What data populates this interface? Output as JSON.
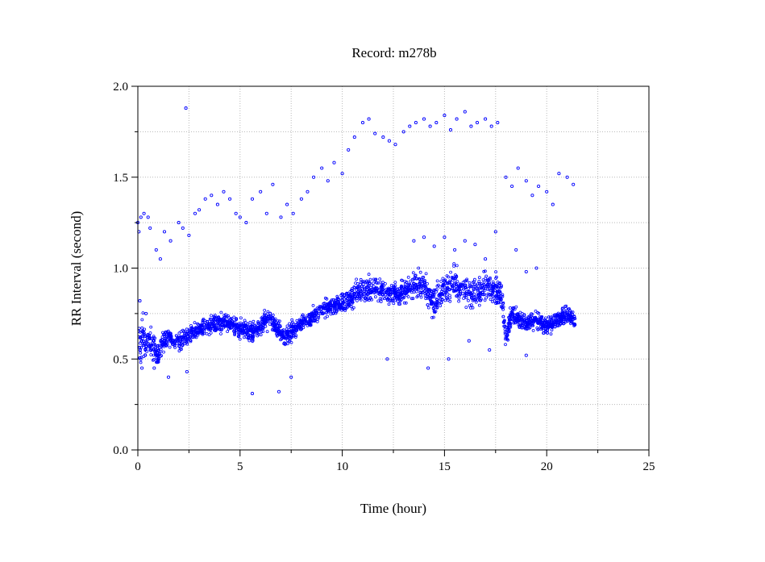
{
  "chart_data": {
    "type": "scatter",
    "title": "Record:  m278b",
    "xlabel": "Time (hour)",
    "ylabel": "RR Interval (second)",
    "xlim": [
      0,
      25
    ],
    "ylim": [
      0.0,
      2.0
    ],
    "xticks": [
      0,
      5,
      10,
      15,
      20,
      25
    ],
    "xtick_labels": [
      "0",
      "5",
      "10",
      "15",
      "20",
      "25"
    ],
    "yticks": [
      0.0,
      0.5,
      1.0,
      1.5,
      2.0
    ],
    "ytick_labels": [
      "0.0",
      "0.5",
      "1.0",
      "1.5",
      "2.0"
    ],
    "grid": true,
    "marker_color": "#0000ff",
    "series": [
      {
        "x": [
          0.05,
          0.1,
          0.15,
          0.2,
          0.25,
          0.3,
          0.4,
          0.55,
          0.7,
          0.85,
          1.0,
          1.1,
          1.25,
          1.5,
          1.8,
          2.1,
          2.45,
          2.8,
          3.2,
          3.6,
          4.0,
          4.5,
          5.0,
          5.5,
          5.8,
          6.2,
          6.5,
          6.9,
          7.2,
          7.5,
          8.0,
          8.5,
          9.0,
          9.5,
          10.0,
          10.5,
          11.0,
          11.5,
          12.0,
          12.5,
          13.0,
          13.5,
          14.0,
          14.5,
          15.0,
          15.5,
          16.0,
          16.5,
          17.0,
          17.5,
          17.8,
          18.0,
          18.3,
          18.6,
          19.0,
          19.5,
          20.0,
          20.5,
          21.0,
          21.4
        ],
        "y": [
          0.63,
          0.6,
          0.58,
          0.62,
          0.65,
          0.6,
          0.57,
          0.59,
          0.58,
          0.55,
          0.52,
          0.55,
          0.6,
          0.62,
          0.59,
          0.6,
          0.63,
          0.65,
          0.67,
          0.68,
          0.7,
          0.69,
          0.67,
          0.65,
          0.66,
          0.7,
          0.72,
          0.66,
          0.62,
          0.65,
          0.7,
          0.73,
          0.77,
          0.79,
          0.8,
          0.84,
          0.88,
          0.89,
          0.87,
          0.86,
          0.87,
          0.91,
          0.9,
          0.8,
          0.88,
          0.92,
          0.88,
          0.86,
          0.9,
          0.88,
          0.85,
          0.62,
          0.75,
          0.72,
          0.7,
          0.72,
          0.68,
          0.72,
          0.74,
          0.71
        ],
        "spread": [
          0.1,
          0.12,
          0.1,
          0.11,
          0.1,
          0.09,
          0.08,
          0.08,
          0.08,
          0.08,
          0.07,
          0.07,
          0.06,
          0.05,
          0.05,
          0.05,
          0.05,
          0.05,
          0.05,
          0.05,
          0.05,
          0.05,
          0.05,
          0.05,
          0.05,
          0.05,
          0.05,
          0.05,
          0.05,
          0.05,
          0.05,
          0.05,
          0.05,
          0.05,
          0.05,
          0.06,
          0.07,
          0.07,
          0.06,
          0.06,
          0.07,
          0.07,
          0.08,
          0.08,
          0.08,
          0.08,
          0.08,
          0.08,
          0.08,
          0.08,
          0.08,
          0.06,
          0.06,
          0.05,
          0.05,
          0.05,
          0.05,
          0.05,
          0.05,
          0.05
        ]
      }
    ],
    "outliers": {
      "x": [
        0.0,
        0.05,
        0.15,
        0.3,
        0.5,
        0.6,
        0.9,
        1.1,
        1.3,
        1.6,
        2.0,
        2.2,
        2.35,
        2.5,
        2.8,
        3.0,
        3.3,
        3.6,
        3.9,
        4.2,
        4.5,
        4.8,
        5.0,
        5.3,
        5.6,
        6.0,
        6.3,
        6.6,
        7.0,
        7.3,
        7.6,
        8.0,
        8.3,
        8.6,
        9.0,
        9.3,
        9.6,
        10.0,
        10.3,
        10.6,
        11.0,
        11.3,
        11.6,
        12.0,
        12.3,
        12.6,
        13.0,
        13.3,
        13.6,
        14.0,
        14.3,
        14.6,
        15.0,
        15.3,
        15.6,
        16.0,
        16.3,
        16.6,
        17.0,
        17.3,
        17.6,
        18.0,
        18.3,
        18.6,
        19.0,
        19.3,
        19.6,
        20.0,
        20.3,
        20.6,
        21.0,
        21.3,
        0.2,
        0.8,
        1.5,
        2.4,
        5.6,
        6.9,
        7.5,
        13.5,
        14.0,
        14.5,
        15.0,
        15.5,
        16.0,
        16.5,
        17.0,
        17.5,
        18.5,
        19.0,
        19.5,
        0.1,
        0.4,
        12.2,
        14.2,
        15.2,
        16.2,
        17.2,
        19.0
      ],
      "y": [
        1.25,
        1.2,
        1.28,
        1.3,
        1.28,
        1.22,
        1.1,
        1.05,
        1.2,
        1.15,
        1.25,
        1.22,
        1.88,
        1.18,
        1.3,
        1.32,
        1.38,
        1.4,
        1.35,
        1.42,
        1.38,
        1.3,
        1.28,
        1.25,
        1.38,
        1.42,
        1.3,
        1.46,
        1.28,
        1.35,
        1.3,
        1.38,
        1.42,
        1.5,
        1.55,
        1.48,
        1.58,
        1.52,
        1.65,
        1.72,
        1.8,
        1.82,
        1.74,
        1.72,
        1.7,
        1.68,
        1.75,
        1.78,
        1.8,
        1.82,
        1.78,
        1.8,
        1.84,
        1.76,
        1.82,
        1.86,
        1.78,
        1.8,
        1.82,
        1.78,
        1.8,
        1.5,
        1.45,
        1.55,
        1.48,
        1.4,
        1.45,
        1.42,
        1.35,
        1.52,
        1.5,
        1.46,
        0.45,
        0.45,
        0.4,
        0.43,
        0.31,
        0.32,
        0.4,
        1.15,
        1.17,
        1.12,
        1.17,
        1.1,
        1.15,
        1.13,
        1.05,
        1.2,
        1.1,
        0.98,
        1.0,
        0.82,
        0.75,
        0.5,
        0.45,
        0.5,
        0.6,
        0.55,
        0.52
      ]
    }
  }
}
